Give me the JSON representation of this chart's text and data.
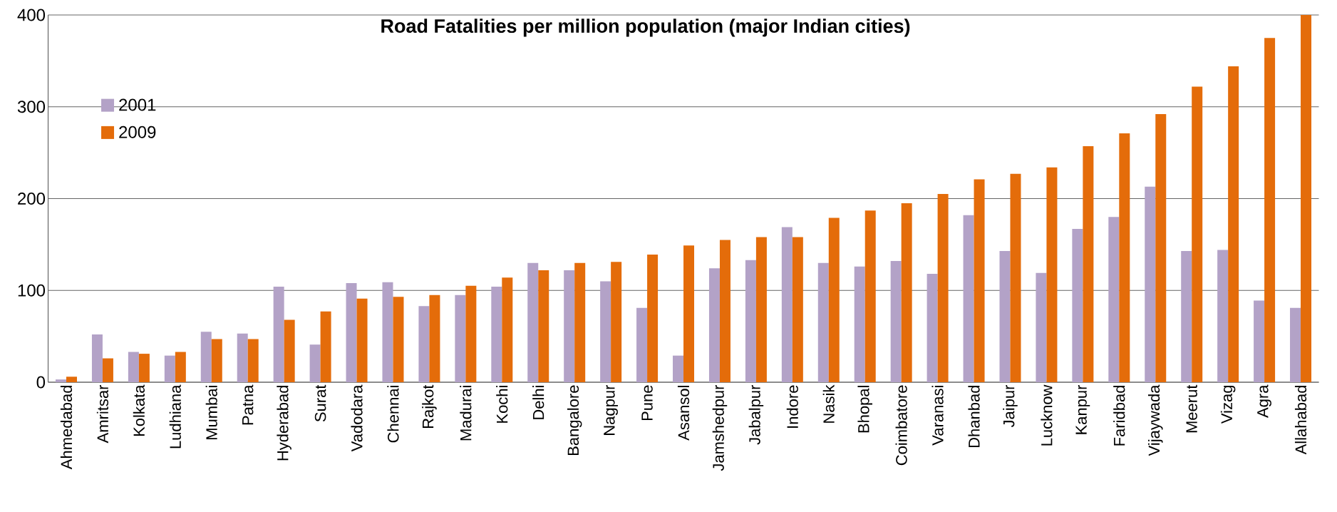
{
  "chart_data": {
    "type": "bar",
    "title": "Road Fatalities per million population (major Indian cities)",
    "categories": [
      "Ahmedabad",
      "Amritsar",
      "Kolkata",
      "Ludhiana",
      "Mumbai",
      "Patna",
      "Hyderabad",
      "Surat",
      "Vadodara",
      "Chennai",
      "Rajkot",
      "Madurai",
      "Kochi",
      "Delhi",
      "Bangalore",
      "Nagpur",
      "Pune",
      "Asansol",
      "Jamshedpur",
      "Jabalpur",
      "Indore",
      "Nasik",
      "Bhopal",
      "Coimbatore",
      "Varanasi",
      "Dhanbad",
      "Jaipur",
      "Lucknow",
      "Kanpur",
      "Faridbad",
      "Vijaywada",
      "Meerut",
      "Vizag",
      "Agra",
      "Allahabad"
    ],
    "series": [
      {
        "name": "2001",
        "color": "#b3a2c7",
        "values": [
          3,
          52,
          33,
          29,
          55,
          53,
          104,
          41,
          108,
          109,
          83,
          95,
          104,
          130,
          122,
          110,
          81,
          29,
          124,
          133,
          169,
          130,
          126,
          132,
          118,
          182,
          143,
          119,
          167,
          180,
          213,
          143,
          144,
          89,
          81
        ]
      },
      {
        "name": "2009",
        "color": "#e46c0a",
        "values": [
          6,
          26,
          31,
          33,
          47,
          47,
          68,
          77,
          91,
          93,
          95,
          105,
          114,
          122,
          130,
          131,
          139,
          149,
          155,
          158,
          158,
          179,
          187,
          195,
          205,
          221,
          227,
          234,
          257,
          271,
          292,
          322,
          344,
          375,
          400
        ]
      }
    ],
    "ylim": [
      0,
      400
    ],
    "yticks": [
      0,
      100,
      200,
      300,
      400
    ],
    "grid": "y",
    "legend": "top left"
  }
}
